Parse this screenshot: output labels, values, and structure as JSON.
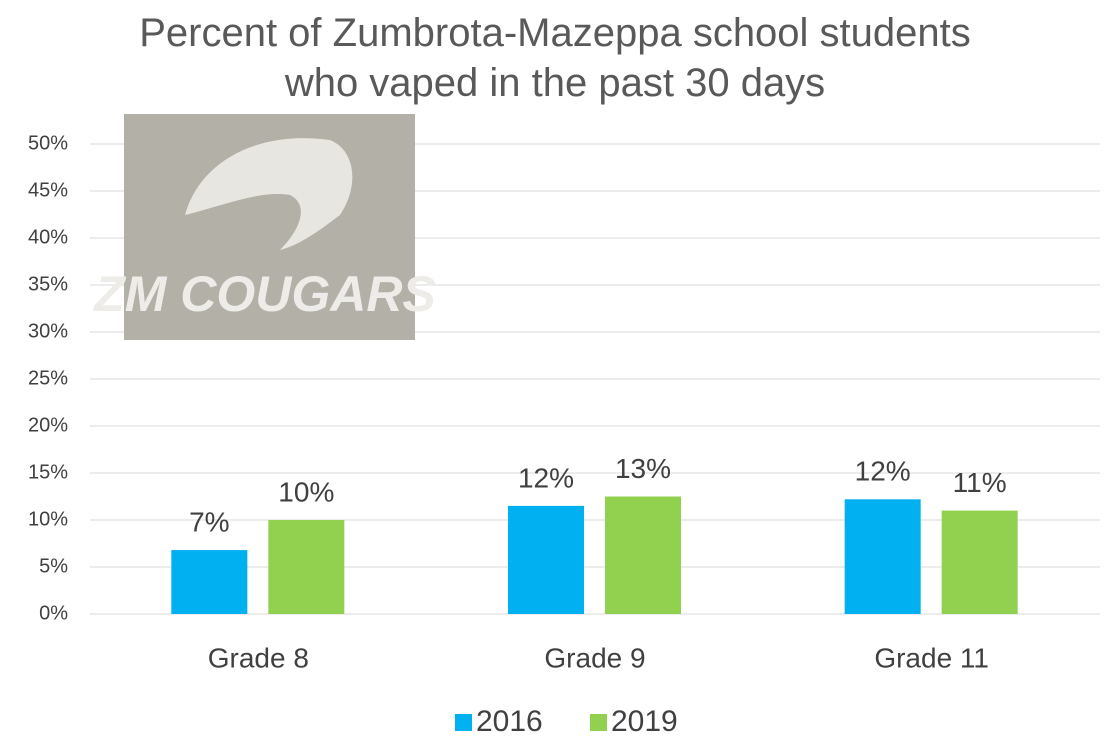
{
  "chart_data": {
    "type": "bar",
    "title": "Percent of Zumbrota-Mazeppa school students who vaped in the past 30 days",
    "image_text": "ZM COUGARS",
    "categories": [
      "Grade 8",
      "Grade 9",
      "Grade 11"
    ],
    "series": [
      {
        "name": "2016",
        "color": "#00b0f0",
        "values": [
          6.8,
          11.5,
          12.2
        ],
        "value_labels": [
          "7%",
          "12%",
          "12%"
        ]
      },
      {
        "name": "2019",
        "color": "#92d050",
        "values": [
          10,
          12.5,
          11
        ],
        "value_labels": [
          "10%",
          "13%",
          "11%"
        ]
      }
    ],
    "ylim": [
      0,
      50
    ],
    "yticks": [
      {
        "value": 0,
        "label": "0%"
      },
      {
        "value": 5,
        "label": "5%"
      },
      {
        "value": 10,
        "label": "10%"
      },
      {
        "value": 15,
        "label": "15%"
      },
      {
        "value": 20,
        "label": "20%"
      },
      {
        "value": 25,
        "label": "25%"
      },
      {
        "value": 30,
        "label": "30%"
      },
      {
        "value": 35,
        "label": "35%"
      },
      {
        "value": 40,
        "label": "40%"
      },
      {
        "value": 45,
        "label": "45%"
      },
      {
        "value": 50,
        "label": "50%"
      }
    ],
    "grid": true,
    "legend": "bottom"
  }
}
